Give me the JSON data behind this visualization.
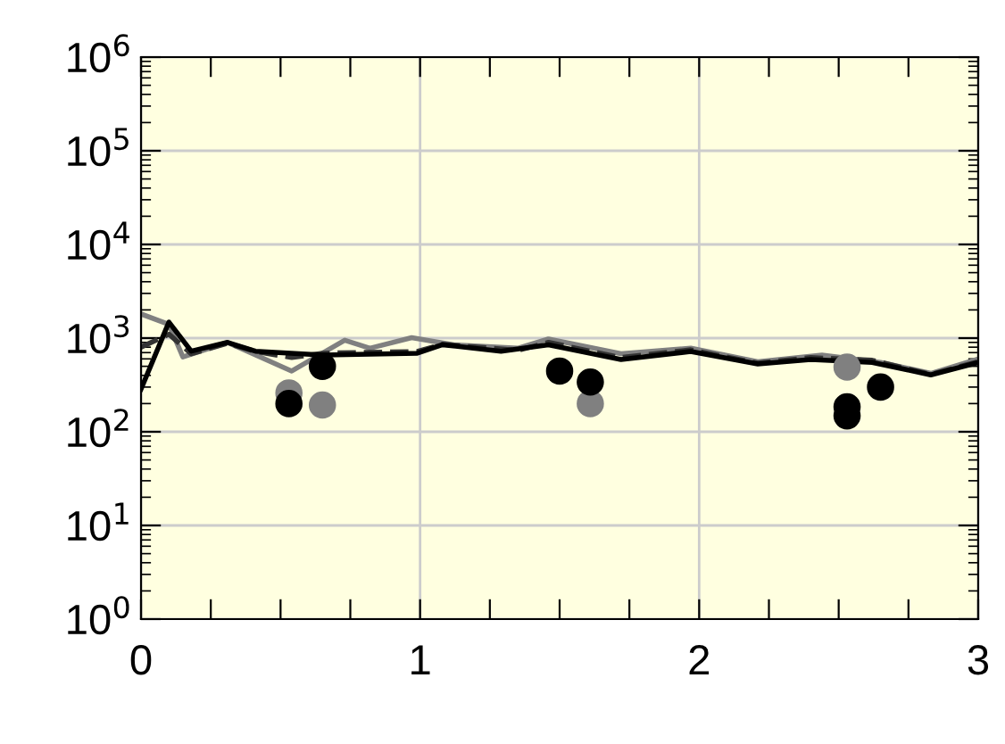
{
  "chart_data": {
    "type": "line",
    "log": "y",
    "grid": true,
    "marker": "none",
    "xlim": [
      0,
      3
    ],
    "ylim": [
      1,
      1000000
    ],
    "xticks": [
      0,
      {
        "value": 0.25,
        "label": null
      },
      {
        "value": 0.5,
        "label": null
      },
      {
        "value": 0.75,
        "label": null
      },
      1,
      {
        "value": 1.25,
        "label": null
      },
      {
        "value": 1.5,
        "label": null
      },
      {
        "value": 1.75,
        "label": null
      },
      2,
      {
        "value": 2.25,
        "label": null
      },
      {
        "value": 2.5,
        "label": null
      },
      {
        "value": 2.75,
        "label": null
      },
      3
    ],
    "yticks": [
      {
        "value": 1,
        "label": "10$^{0}$"
      },
      {
        "value": 10,
        "label": "10$^{1}$"
      },
      {
        "value": 100,
        "label": "10$^{2}$"
      },
      {
        "value": 1000,
        "label": "10$^{3}$"
      },
      {
        "value": 10000,
        "label": "10$^{4}$"
      },
      {
        "value": 100000,
        "label": "10$^{5}$"
      },
      {
        "value": 1000000,
        "label": "10$^{6}$"
      }
    ],
    "series": [
      {
        "color": "#808080",
        "line_style": "solid",
        "x": [
          0,
          0.1,
          0.15,
          0.31,
          0.54,
          0.73,
          0.82,
          0.97,
          1.12,
          1.35,
          1.46,
          1.72,
          1.97,
          2.21,
          2.44,
          2.65,
          2.83,
          3.0
        ],
        "values": [
          1810,
          1400,
          630,
          900,
          445,
          950,
          780,
          1010,
          850,
          780,
          980,
          680,
          780,
          560,
          660,
          550,
          420,
          600
        ]
      },
      {
        "color": "#333333",
        "line_style": "dashed",
        "x": [
          0,
          0.1,
          0.18,
          0.31,
          0.41,
          0.54,
          0.65,
          0.99,
          1.08,
          1.35,
          1.46,
          1.72,
          1.97,
          2.21,
          2.4,
          2.62,
          2.83,
          3.0
        ],
        "values": [
          800,
          1100,
          680,
          880,
          720,
          620,
          690,
          720,
          860,
          740,
          900,
          620,
          750,
          540,
          620,
          580,
          410,
          560
        ]
      },
      {
        "color": "#000000",
        "line_style": "solid",
        "x": [
          0,
          0.1,
          0.18,
          0.31,
          0.41,
          0.65,
          0.99,
          1.08,
          1.29,
          1.46,
          1.72,
          1.97,
          2.21,
          2.4,
          2.62,
          2.83,
          3.0
        ],
        "values": [
          285,
          1480,
          725,
          900,
          725,
          660,
          690,
          850,
          725,
          850,
          590,
          720,
          530,
          590,
          550,
          405,
          550
        ]
      },
      {
        "type": "scatter",
        "marker": "circle",
        "color": "#808080",
        "x": [
          0.53,
          0.65,
          1.61,
          2.53
        ],
        "values": [
          260,
          193,
          200,
          490
        ]
      },
      {
        "type": "scatter",
        "marker": "circle",
        "color": "#000000",
        "x": [
          0.53,
          0.65,
          1.5,
          1.61,
          2.53,
          2.53,
          2.65
        ],
        "values": [
          200,
          500,
          445,
          340,
          185,
          148,
          300
        ]
      }
    ]
  }
}
